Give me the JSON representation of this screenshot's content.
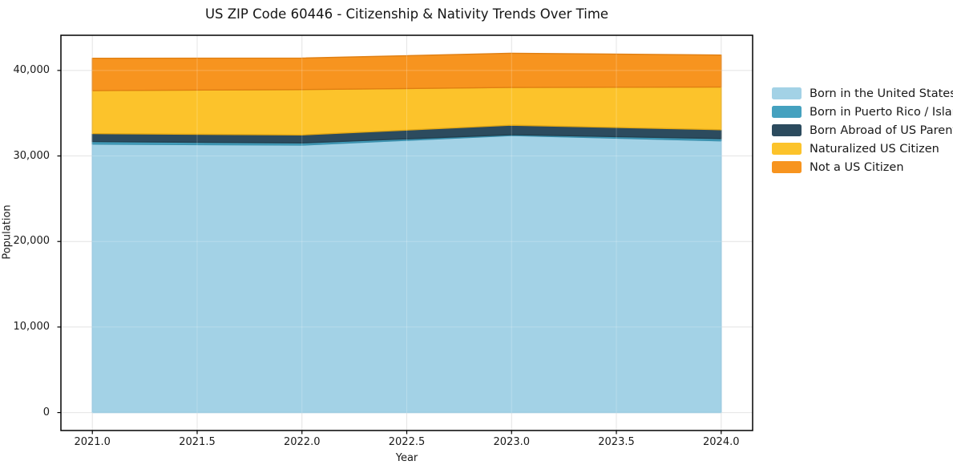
{
  "title": "US ZIP Code 60446 - Citizenship & Nativity Trends Over Time",
  "chart_data": {
    "type": "area",
    "stacked": true,
    "title": "US ZIP Code 60446 - Citizenship & Nativity Trends Over Time",
    "xlabel": "Year",
    "ylabel": "Population",
    "x": [
      2021,
      2022,
      2023,
      2024
    ],
    "series": [
      {
        "name": "Born in the United States",
        "values": [
          31390,
          31270,
          32390,
          31770
        ],
        "color": "#A3D2E6",
        "edge": "#8AC2DB"
      },
      {
        "name": "Born in Puerto Rico / Islands",
        "values": [
          290,
          250,
          100,
          260
        ],
        "color": "#45A1BF",
        "edge": "#3A8FAC"
      },
      {
        "name": "Born Abroad of US Parent(s)",
        "values": [
          940,
          940,
          1110,
          1040
        ],
        "color": "#2C4B5E",
        "edge": "#23404F"
      },
      {
        "name": "Naturalized US Citizen",
        "values": [
          5020,
          5300,
          4410,
          4990
        ],
        "color": "#FCC32B",
        "edge": "#E5A914"
      },
      {
        "name": "Not a US Citizen",
        "values": [
          3780,
          3680,
          4000,
          3740
        ],
        "color": "#F7941F",
        "edge": "#E07F12"
      }
    ],
    "stack_totals": [
      41420,
      41440,
      42010,
      41800
    ],
    "xticks": {
      "values": [
        2021.0,
        2021.5,
        2022.0,
        2022.5,
        2023.0,
        2023.5,
        2024.0
      ],
      "labels": [
        "2021.0",
        "2021.5",
        "2022.0",
        "2022.5",
        "2023.0",
        "2023.5",
        "2024.0"
      ]
    },
    "yticks": {
      "values": [
        0,
        10000,
        20000,
        30000,
        40000
      ],
      "labels": [
        "0",
        "10,000",
        "20,000",
        "30,000",
        "40,000"
      ]
    },
    "xlim": [
      2020.85,
      2024.15
    ],
    "ylim": [
      -2100,
      44110
    ],
    "grid": true,
    "grid_color": "#DEDEDE",
    "spine_color": "#000000",
    "legend_position": "right",
    "legend_frame": false
  }
}
